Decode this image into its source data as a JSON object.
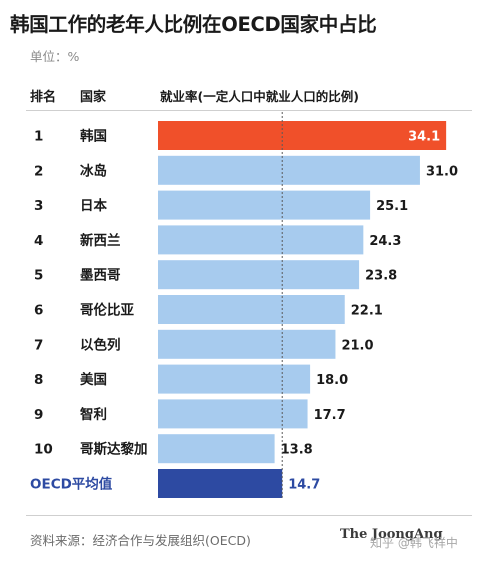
{
  "title": "韩国工作的老年人比例在OECD国家中占比",
  "unit_label": "单位：%",
  "headers": {
    "rank": "排名",
    "country": "国家",
    "value": "就业率(一定人口中就业人口的比例)"
  },
  "source": "资料来源：经济合作与发展组织(OECD)",
  "watermark": {
    "brand": "The JoongAng",
    "site": "知乎 @韩飞祥中"
  },
  "colors": {
    "highlight": "#f0502a",
    "bar": "#a7cbee",
    "average": "#2d4aa2",
    "average_text": "#2d4aa2",
    "reference_line": "#5a5a5a"
  },
  "chart_data": {
    "type": "bar",
    "orientation": "horizontal",
    "title": "韩国工作的老年人比例在OECD国家中占比",
    "unit": "%",
    "reference_line_value": 14.7,
    "rows": [
      {
        "rank": "1",
        "country": "韩国",
        "value": 34.1,
        "label": "34.1",
        "style": "highlight"
      },
      {
        "rank": "2",
        "country": "冰岛",
        "value": 31.0,
        "label": "31.0",
        "style": "normal"
      },
      {
        "rank": "3",
        "country": "日本",
        "value": 25.1,
        "label": "25.1",
        "style": "normal"
      },
      {
        "rank": "4",
        "country": "新西兰",
        "value": 24.3,
        "label": "24.3",
        "style": "normal"
      },
      {
        "rank": "5",
        "country": "墨西哥",
        "value": 23.8,
        "label": "23.8",
        "style": "normal"
      },
      {
        "rank": "6",
        "country": "哥伦比亚",
        "value": 22.1,
        "label": "22.1",
        "style": "normal"
      },
      {
        "rank": "7",
        "country": "以色列",
        "value": 21.0,
        "label": "21.0",
        "style": "normal"
      },
      {
        "rank": "8",
        "country": "美国",
        "value": 18.0,
        "label": "18.0",
        "style": "normal"
      },
      {
        "rank": "9",
        "country": "智利",
        "value": 17.7,
        "label": "17.7",
        "style": "normal"
      },
      {
        "rank": "10",
        "country": "哥斯达黎加",
        "value": 13.8,
        "label": "13.8",
        "style": "normal"
      },
      {
        "rank": "",
        "country": "OECD平均值",
        "value": 14.7,
        "label": "14.7",
        "style": "average"
      }
    ]
  }
}
